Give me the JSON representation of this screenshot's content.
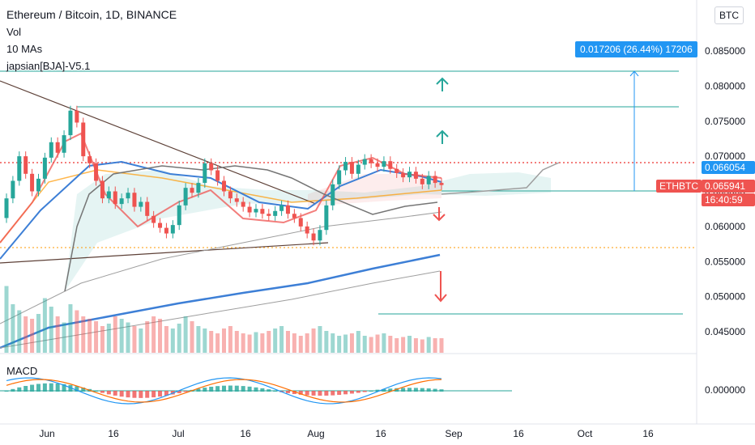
{
  "header": {
    "title": "Ethereum / Bitcoin, 1D, BINANCE",
    "indicators": [
      "Vol",
      "10 MAs",
      "japsian[BJA]-V5.1"
    ],
    "macd_label": "MACD"
  },
  "currency_button": "BTC",
  "price_tags": {
    "last": "0.066054",
    "symbol": "ETHBTC",
    "close": "0.065941",
    "countdown": "16:40:59",
    "macd_zero": "0.000000"
  },
  "measure_label": "0.017206 (26.44%) 17206",
  "colors": {
    "up": "#26a69a",
    "down": "#ef5350",
    "blue_ma": "#3d7fd6",
    "measure": "#2196f3",
    "support": "#ef5350",
    "green_line": "#26a69a"
  },
  "chart_data": {
    "type": "candlestick",
    "price_axis": {
      "ticks": [
        "0.085000",
        "0.080000",
        "0.075000",
        "0.070000",
        "0.065000",
        "0.060000",
        "0.055000",
        "0.050000",
        "0.045000"
      ],
      "ylim": [
        0.042,
        0.09
      ]
    },
    "x_axis": {
      "ticks": [
        "Jun",
        "16",
        "Jul",
        "16",
        "Aug",
        "16",
        "Sep",
        "16",
        "Oct",
        "16"
      ]
    },
    "candles": [
      {
        "o": 0.0612,
        "c": 0.064
      },
      {
        "o": 0.064,
        "c": 0.0665
      },
      {
        "o": 0.0665,
        "c": 0.07
      },
      {
        "o": 0.07,
        "c": 0.0675
      },
      {
        "o": 0.0675,
        "c": 0.065
      },
      {
        "o": 0.065,
        "c": 0.0668
      },
      {
        "o": 0.0668,
        "c": 0.0698
      },
      {
        "o": 0.0698,
        "c": 0.072
      },
      {
        "o": 0.072,
        "c": 0.0705
      },
      {
        "o": 0.0705,
        "c": 0.073
      },
      {
        "o": 0.073,
        "c": 0.0765
      },
      {
        "o": 0.0765,
        "c": 0.0748
      },
      {
        "o": 0.0748,
        "c": 0.07
      },
      {
        "o": 0.07,
        "c": 0.069
      },
      {
        "o": 0.069,
        "c": 0.0665
      },
      {
        "o": 0.0665,
        "c": 0.064
      },
      {
        "o": 0.064,
        "c": 0.065
      },
      {
        "o": 0.065,
        "c": 0.0632
      },
      {
        "o": 0.0632,
        "c": 0.064
      },
      {
        "o": 0.064,
        "c": 0.0648
      },
      {
        "o": 0.0648,
        "c": 0.0628
      },
      {
        "o": 0.0628,
        "c": 0.0635
      },
      {
        "o": 0.0635,
        "c": 0.0615
      },
      {
        "o": 0.0615,
        "c": 0.0605
      },
      {
        "o": 0.0605,
        "c": 0.0598
      },
      {
        "o": 0.0598,
        "c": 0.059
      },
      {
        "o": 0.059,
        "c": 0.0602
      },
      {
        "o": 0.0602,
        "c": 0.063
      },
      {
        "o": 0.063,
        "c": 0.0655
      },
      {
        "o": 0.0655,
        "c": 0.0648
      },
      {
        "o": 0.0648,
        "c": 0.0662
      },
      {
        "o": 0.0662,
        "c": 0.069
      },
      {
        "o": 0.069,
        "c": 0.068
      },
      {
        "o": 0.068,
        "c": 0.0665
      },
      {
        "o": 0.0665,
        "c": 0.065
      },
      {
        "o": 0.065,
        "c": 0.064
      },
      {
        "o": 0.064,
        "c": 0.0635
      },
      {
        "o": 0.0635,
        "c": 0.0628
      },
      {
        "o": 0.0628,
        "c": 0.062
      },
      {
        "o": 0.062,
        "c": 0.0625
      },
      {
        "o": 0.0625,
        "c": 0.0618
      },
      {
        "o": 0.0618,
        "c": 0.0615
      },
      {
        "o": 0.0615,
        "c": 0.0622
      },
      {
        "o": 0.0622,
        "c": 0.063
      },
      {
        "o": 0.063,
        "c": 0.0618
      },
      {
        "o": 0.0618,
        "c": 0.0612
      },
      {
        "o": 0.0612,
        "c": 0.06
      },
      {
        "o": 0.06,
        "c": 0.059
      },
      {
        "o": 0.059,
        "c": 0.058
      },
      {
        "o": 0.058,
        "c": 0.0595
      },
      {
        "o": 0.0595,
        "c": 0.063
      },
      {
        "o": 0.063,
        "c": 0.066
      },
      {
        "o": 0.066,
        "c": 0.068
      },
      {
        "o": 0.068,
        "c": 0.0692
      },
      {
        "o": 0.0692,
        "c": 0.0675
      },
      {
        "o": 0.0675,
        "c": 0.0688
      },
      {
        "o": 0.0688,
        "c": 0.0696
      },
      {
        "o": 0.0696,
        "c": 0.069
      },
      {
        "o": 0.069,
        "c": 0.0685
      },
      {
        "o": 0.0685,
        "c": 0.0693
      },
      {
        "o": 0.0693,
        "c": 0.0682
      },
      {
        "o": 0.0682,
        "c": 0.0676
      },
      {
        "o": 0.0676,
        "c": 0.067
      },
      {
        "o": 0.067,
        "c": 0.0678
      },
      {
        "o": 0.0678,
        "c": 0.0668
      },
      {
        "o": 0.0668,
        "c": 0.066
      },
      {
        "o": 0.066,
        "c": 0.0672
      },
      {
        "o": 0.0672,
        "c": 0.0662
      },
      {
        "o": 0.0662,
        "c": 0.0659
      }
    ],
    "volume": [
      55,
      40,
      35,
      30,
      28,
      32,
      45,
      38,
      30,
      25,
      40,
      35,
      30,
      28,
      26,
      22,
      24,
      30,
      28,
      25,
      22,
      20,
      26,
      30,
      28,
      22,
      20,
      24,
      30,
      26,
      22,
      20,
      18,
      16,
      20,
      22,
      18,
      16,
      15,
      17,
      16,
      18,
      20,
      22,
      18,
      16,
      14,
      16,
      20,
      22,
      18,
      16,
      14,
      15,
      16,
      18,
      14,
      13,
      15,
      16,
      14,
      12,
      13,
      14,
      12,
      11,
      13,
      12,
      12
    ],
    "macd": {
      "label": "MACD",
      "zero": 0.0
    }
  }
}
